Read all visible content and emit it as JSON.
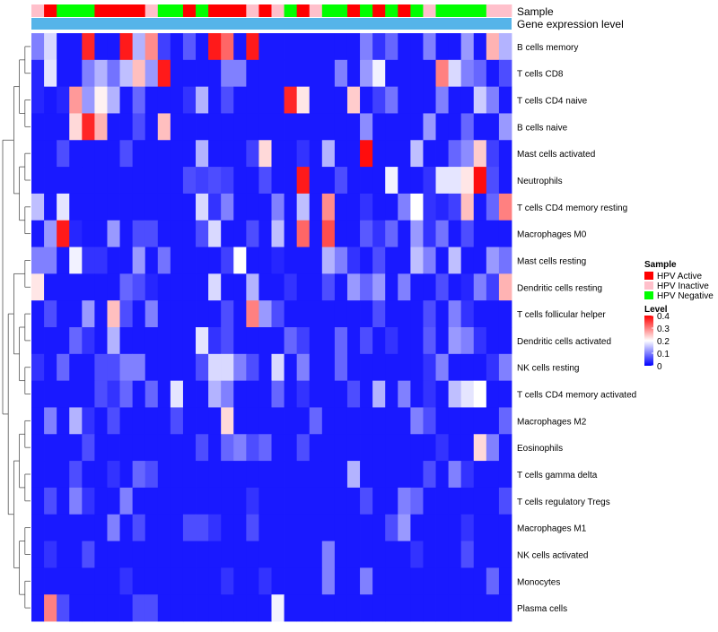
{
  "chart_data": {
    "type": "heatmap",
    "annotations": [
      {
        "label": "Sample"
      },
      {
        "label": "Gene expression level"
      }
    ],
    "legend": {
      "sample_title": "Sample",
      "sample_items": [
        {
          "label": "HPV Active",
          "color": "#ff0000"
        },
        {
          "label": "HPV Inactive",
          "color": "#ffc0cb"
        },
        {
          "label": "HPV Negative",
          "color": "#00ff00"
        }
      ],
      "level_title": "Level",
      "level_ticks": [
        "0.4",
        "0.3",
        "0.2",
        "0.1",
        "0"
      ],
      "level_values": [
        0.4,
        0.3,
        0.2,
        0.1,
        0.0
      ],
      "color_stops": [
        "#0000ff",
        "#ffffff",
        "#ff0000"
      ],
      "color_range": [
        0,
        0.4
      ]
    },
    "sample_colors_hex": {
      "A": "#ff0000",
      "I": "#ffc0cb",
      "N": "#00ff00"
    },
    "sample_groups": [
      "I",
      "A",
      "N",
      "N",
      "N",
      "A",
      "A",
      "A",
      "A",
      "I",
      "N",
      "N",
      "A",
      "N",
      "A",
      "A",
      "A",
      "I",
      "A",
      "I",
      "N",
      "A",
      "I",
      "N",
      "N",
      "A",
      "N",
      "A",
      "N",
      "A",
      "N",
      "I",
      "N",
      "N",
      "N",
      "N",
      "I",
      "I"
    ],
    "expression_bar_color": "#56b4e9",
    "row_labels": [
      "B cells memory",
      "T cells CD8",
      "T cells CD4 naive",
      "B cells naive",
      "Mast cells activated",
      "Neutrophils",
      "T cells CD4 memory resting",
      "Macrophages M0",
      "Mast cells resting",
      "Dendritic cells resting",
      "T cells follicular helper",
      "Dendritic cells activated",
      "NK cells resting",
      "T cells CD4 memory activated",
      "Macrophages M2",
      "Eosinophils",
      "T cells gamma delta",
      "T cells regulatory  Tregs",
      "Macrophages M1",
      "NK cells activated",
      "Monocytes",
      "Plasma cells"
    ],
    "values": [
      [
        0.1,
        0.17,
        0.02,
        0.02,
        0.37,
        0.02,
        0.02,
        0.38,
        0.14,
        0.29,
        0.05,
        0.02,
        0.07,
        0.02,
        0.38,
        0.32,
        0.02,
        0.38,
        0.02,
        0.02,
        0.02,
        0.02,
        0.02,
        0.02,
        0.02,
        0.02,
        0.1,
        0.04,
        0.08,
        0.02,
        0.02,
        0.1,
        0.02,
        0.02,
        0.12,
        0.02,
        0.26,
        0.14
      ],
      [
        0.03,
        0.18,
        0.02,
        0.02,
        0.1,
        0.14,
        0.09,
        0.15,
        0.25,
        0.12,
        0.38,
        0.02,
        0.02,
        0.02,
        0.02,
        0.1,
        0.1,
        0.02,
        0.02,
        0.02,
        0.02,
        0.02,
        0.02,
        0.02,
        0.1,
        0.02,
        0.12,
        0.19,
        0.02,
        0.02,
        0.02,
        0.02,
        0.3,
        0.17,
        0.1,
        0.08,
        0.02,
        0.06
      ],
      [
        0.03,
        0.02,
        0.03,
        0.28,
        0.12,
        0.21,
        0.14,
        0.02,
        0.08,
        0.02,
        0.02,
        0.02,
        0.04,
        0.14,
        0.02,
        0.06,
        0.02,
        0.02,
        0.02,
        0.02,
        0.37,
        0.22,
        0.02,
        0.02,
        0.02,
        0.24,
        0.02,
        0.05,
        0.09,
        0.02,
        0.02,
        0.02,
        0.1,
        0.02,
        0.02,
        0.16,
        0.1,
        0.02
      ],
      [
        0.02,
        0.02,
        0.02,
        0.23,
        0.37,
        0.26,
        0.02,
        0.02,
        0.06,
        0.02,
        0.25,
        0.02,
        0.02,
        0.02,
        0.02,
        0.02,
        0.02,
        0.02,
        0.02,
        0.02,
        0.02,
        0.02,
        0.02,
        0.02,
        0.02,
        0.02,
        0.11,
        0.02,
        0.02,
        0.02,
        0.02,
        0.12,
        0.02,
        0.02,
        0.08,
        0.02,
        0.02,
        0.12
      ],
      [
        0.02,
        0.02,
        0.06,
        0.02,
        0.02,
        0.02,
        0.02,
        0.06,
        0.02,
        0.02,
        0.02,
        0.02,
        0.02,
        0.14,
        0.02,
        0.02,
        0.02,
        0.05,
        0.23,
        0.02,
        0.02,
        0.04,
        0.02,
        0.14,
        0.02,
        0.02,
        0.39,
        0.02,
        0.02,
        0.02,
        0.15,
        0.02,
        0.02,
        0.08,
        0.11,
        0.24,
        0.05,
        0.02
      ],
      [
        0.02,
        0.02,
        0.02,
        0.02,
        0.02,
        0.02,
        0.02,
        0.02,
        0.02,
        0.02,
        0.02,
        0.02,
        0.06,
        0.05,
        0.06,
        0.05,
        0.02,
        0.02,
        0.06,
        0.02,
        0.02,
        0.38,
        0.02,
        0.02,
        0.06,
        0.02,
        0.02,
        0.02,
        0.19,
        0.02,
        0.02,
        0.04,
        0.18,
        0.18,
        0.22,
        0.39,
        0.06,
        0.02
      ],
      [
        0.15,
        0.02,
        0.18,
        0.02,
        0.02,
        0.02,
        0.02,
        0.02,
        0.02,
        0.02,
        0.02,
        0.02,
        0.02,
        0.17,
        0.04,
        0.1,
        0.02,
        0.02,
        0.02,
        0.1,
        0.02,
        0.15,
        0.02,
        0.29,
        0.02,
        0.02,
        0.04,
        0.02,
        0.02,
        0.1,
        0.2,
        0.04,
        0.03,
        0.05,
        0.25,
        0.02,
        0.08,
        0.3
      ],
      [
        0.02,
        0.12,
        0.38,
        0.03,
        0.02,
        0.02,
        0.12,
        0.02,
        0.06,
        0.06,
        0.02,
        0.02,
        0.02,
        0.06,
        0.17,
        0.02,
        0.02,
        0.06,
        0.02,
        0.15,
        0.02,
        0.32,
        0.02,
        0.34,
        0.02,
        0.02,
        0.07,
        0.04,
        0.08,
        0.02,
        0.12,
        0.04,
        0.09,
        0.02,
        0.06,
        0.02,
        0.02,
        0.02
      ],
      [
        0.1,
        0.1,
        0.02,
        0.19,
        0.04,
        0.04,
        0.02,
        0.02,
        0.12,
        0.02,
        0.09,
        0.02,
        0.02,
        0.02,
        0.02,
        0.05,
        0.2,
        0.02,
        0.02,
        0.03,
        0.02,
        0.02,
        0.02,
        0.14,
        0.1,
        0.04,
        0.02,
        0.06,
        0.02,
        0.02,
        0.15,
        0.1,
        0.02,
        0.15,
        0.02,
        0.02,
        0.12,
        0.09
      ],
      [
        0.22,
        0.02,
        0.02,
        0.02,
        0.02,
        0.02,
        0.02,
        0.08,
        0.06,
        0.03,
        0.02,
        0.02,
        0.02,
        0.02,
        0.17,
        0.02,
        0.02,
        0.14,
        0.02,
        0.02,
        0.04,
        0.02,
        0.02,
        0.06,
        0.02,
        0.12,
        0.08,
        0.12,
        0.02,
        0.1,
        0.02,
        0.02,
        0.06,
        0.02,
        0.03,
        0.1,
        0.05,
        0.26
      ],
      [
        0.02,
        0.06,
        0.02,
        0.02,
        0.12,
        0.02,
        0.25,
        0.06,
        0.02,
        0.1,
        0.02,
        0.02,
        0.02,
        0.02,
        0.02,
        0.06,
        0.02,
        0.3,
        0.12,
        0.06,
        0.02,
        0.02,
        0.02,
        0.02,
        0.02,
        0.02,
        0.02,
        0.06,
        0.02,
        0.02,
        0.02,
        0.06,
        0.02,
        0.1,
        0.04,
        0.02,
        0.02,
        0.02
      ],
      [
        0.02,
        0.02,
        0.02,
        0.08,
        0.04,
        0.02,
        0.14,
        0.02,
        0.02,
        0.02,
        0.02,
        0.02,
        0.02,
        0.18,
        0.04,
        0.06,
        0.02,
        0.02,
        0.02,
        0.02,
        0.08,
        0.05,
        0.02,
        0.02,
        0.08,
        0.02,
        0.06,
        0.02,
        0.04,
        0.02,
        0.02,
        0.07,
        0.02,
        0.12,
        0.1,
        0.04,
        0.02,
        0.02
      ],
      [
        0.04,
        0.02,
        0.08,
        0.02,
        0.02,
        0.06,
        0.06,
        0.1,
        0.1,
        0.02,
        0.02,
        0.02,
        0.02,
        0.06,
        0.17,
        0.17,
        0.1,
        0.06,
        0.02,
        0.17,
        0.02,
        0.1,
        0.02,
        0.02,
        0.08,
        0.02,
        0.02,
        0.02,
        0.02,
        0.02,
        0.02,
        0.04,
        0.1,
        0.02,
        0.02,
        0.02,
        0.04,
        0.1
      ],
      [
        0.02,
        0.02,
        0.02,
        0.02,
        0.02,
        0.06,
        0.04,
        0.08,
        0.02,
        0.08,
        0.02,
        0.18,
        0.02,
        0.02,
        0.14,
        0.1,
        0.02,
        0.02,
        0.02,
        0.08,
        0.02,
        0.04,
        0.02,
        0.02,
        0.02,
        0.06,
        0.02,
        0.14,
        0.02,
        0.1,
        0.02,
        0.04,
        0.02,
        0.15,
        0.18,
        0.2,
        0.02,
        0.02
      ],
      [
        0.02,
        0.1,
        0.02,
        0.14,
        0.04,
        0.02,
        0.06,
        0.02,
        0.02,
        0.02,
        0.02,
        0.06,
        0.02,
        0.02,
        0.02,
        0.23,
        0.02,
        0.02,
        0.02,
        0.02,
        0.02,
        0.02,
        0.08,
        0.02,
        0.02,
        0.02,
        0.02,
        0.02,
        0.02,
        0.02,
        0.1,
        0.06,
        0.02,
        0.02,
        0.02,
        0.02,
        0.02,
        0.08
      ],
      [
        0.02,
        0.02,
        0.02,
        0.02,
        0.06,
        0.02,
        0.02,
        0.02,
        0.02,
        0.02,
        0.02,
        0.02,
        0.02,
        0.06,
        0.02,
        0.08,
        0.1,
        0.06,
        0.08,
        0.02,
        0.02,
        0.06,
        0.02,
        0.02,
        0.02,
        0.02,
        0.02,
        0.02,
        0.02,
        0.02,
        0.02,
        0.02,
        0.04,
        0.02,
        0.02,
        0.23,
        0.1,
        0.02
      ],
      [
        0.02,
        0.02,
        0.02,
        0.06,
        0.02,
        0.02,
        0.04,
        0.02,
        0.08,
        0.06,
        0.02,
        0.02,
        0.02,
        0.02,
        0.02,
        0.02,
        0.02,
        0.02,
        0.02,
        0.02,
        0.02,
        0.02,
        0.02,
        0.02,
        0.02,
        0.14,
        0.02,
        0.02,
        0.02,
        0.02,
        0.02,
        0.06,
        0.02,
        0.1,
        0.04,
        0.02,
        0.02,
        0.02
      ],
      [
        0.02,
        0.06,
        0.02,
        0.1,
        0.04,
        0.02,
        0.02,
        0.1,
        0.02,
        0.02,
        0.02,
        0.02,
        0.02,
        0.02,
        0.02,
        0.02,
        0.02,
        0.04,
        0.02,
        0.02,
        0.02,
        0.02,
        0.02,
        0.02,
        0.02,
        0.02,
        0.06,
        0.02,
        0.02,
        0.1,
        0.08,
        0.02,
        0.02,
        0.02,
        0.02,
        0.02,
        0.02,
        0.06
      ],
      [
        0.02,
        0.02,
        0.02,
        0.02,
        0.02,
        0.02,
        0.1,
        0.02,
        0.06,
        0.02,
        0.02,
        0.02,
        0.06,
        0.06,
        0.04,
        0.02,
        0.02,
        0.06,
        0.02,
        0.02,
        0.02,
        0.02,
        0.02,
        0.02,
        0.02,
        0.02,
        0.02,
        0.02,
        0.06,
        0.12,
        0.02,
        0.02,
        0.02,
        0.02,
        0.04,
        0.02,
        0.02,
        0.02
      ],
      [
        0.02,
        0.04,
        0.02,
        0.02,
        0.06,
        0.02,
        0.02,
        0.02,
        0.02,
        0.02,
        0.02,
        0.02,
        0.02,
        0.02,
        0.02,
        0.02,
        0.02,
        0.02,
        0.02,
        0.02,
        0.02,
        0.02,
        0.02,
        0.1,
        0.02,
        0.02,
        0.02,
        0.02,
        0.02,
        0.02,
        0.04,
        0.02,
        0.02,
        0.02,
        0.06,
        0.02,
        0.02,
        0.02
      ],
      [
        0.02,
        0.02,
        0.02,
        0.02,
        0.02,
        0.02,
        0.02,
        0.04,
        0.02,
        0.02,
        0.02,
        0.02,
        0.02,
        0.02,
        0.02,
        0.04,
        0.02,
        0.02,
        0.04,
        0.02,
        0.02,
        0.02,
        0.02,
        0.1,
        0.02,
        0.02,
        0.1,
        0.02,
        0.02,
        0.02,
        0.02,
        0.02,
        0.02,
        0.02,
        0.02,
        0.02,
        0.08,
        0.02
      ],
      [
        0.02,
        0.3,
        0.06,
        0.02,
        0.02,
        0.02,
        0.02,
        0.02,
        0.06,
        0.06,
        0.02,
        0.02,
        0.02,
        0.02,
        0.02,
        0.02,
        0.02,
        0.02,
        0.02,
        0.19,
        0.02,
        0.02,
        0.02,
        0.02,
        0.02,
        0.02,
        0.02,
        0.02,
        0.02,
        0.02,
        0.02,
        0.02,
        0.02,
        0.02,
        0.02,
        0.02,
        0.02,
        0.02
      ]
    ],
    "dendrogram": {
      "children": [
        {
          "children": [
            {
              "children": [
                {
                  "children": [
                    {
                      "leaf": 0
                    },
                    {
                      "leaf": 1
                    }
                  ]
                },
                {
                  "children": [
                    {
                      "leaf": 2
                    },
                    {
                      "leaf": 3
                    }
                  ]
                }
              ]
            },
            {
              "children": [
                {
                  "children": [
                    {
                      "leaf": 4
                    },
                    {
                      "leaf": 5
                    }
                  ]
                },
                {
                  "children": [
                    {
                      "leaf": 6
                    },
                    {
                      "leaf": 7
                    }
                  ]
                }
              ]
            }
          ]
        },
        {
          "children": [
            {
              "children": [
                {
                  "children": [
                    {
                      "leaf": 8
                    },
                    {
                      "leaf": 9
                    }
                  ]
                },
                {
                  "children": [
                    {
                      "children": [
                        {
                          "leaf": 10
                        },
                        {
                          "leaf": 11
                        }
                      ]
                    },
                    {
                      "children": [
                        {
                          "leaf": 12
                        },
                        {
                          "leaf": 13
                        }
                      ]
                    }
                  ]
                }
              ]
            },
            {
              "children": [
                {
                  "children": [
                    {
                      "children": [
                        {
                          "leaf": 14
                        },
                        {
                          "leaf": 15
                        }
                      ]
                    },
                    {
                      "children": [
                        {
                          "leaf": 16
                        },
                        {
                          "leaf": 17
                        }
                      ]
                    }
                  ]
                },
                {
                  "children": [
                    {
                      "children": [
                        {
                          "leaf": 18
                        },
                        {
                          "leaf": 19
                        }
                      ]
                    },
                    {
                      "children": [
                        {
                          "leaf": 20
                        },
                        {
                          "leaf": 21
                        }
                      ]
                    }
                  ]
                }
              ]
            }
          ]
        }
      ]
    }
  }
}
